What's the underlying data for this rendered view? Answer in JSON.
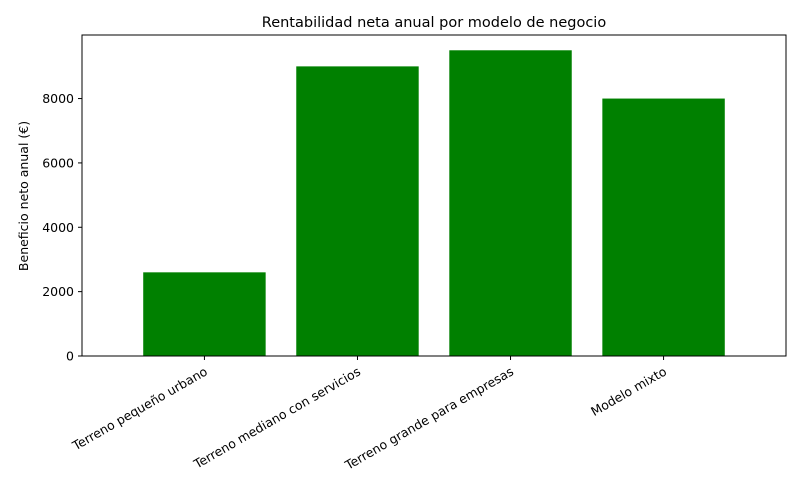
{
  "chart_data": {
    "type": "bar",
    "title": "Rentabilidad neta anual por modelo de negocio",
    "xlabel": "",
    "ylabel": "Beneficio neto anual (€)",
    "categories": [
      "Terreno pequeño urbano",
      "Terreno mediano con servicios",
      "Terreno grande para empresas",
      "Modelo mixto"
    ],
    "values": [
      2600,
      9000,
      9500,
      8000
    ],
    "ylim": [
      0,
      9975
    ],
    "yticks": [
      0,
      2000,
      4000,
      6000,
      8000
    ],
    "ytick_labels": [
      "0",
      "2000",
      "4000",
      "6000",
      "8000"
    ],
    "bar_color": "#008000",
    "grid": false,
    "legend": "none"
  }
}
